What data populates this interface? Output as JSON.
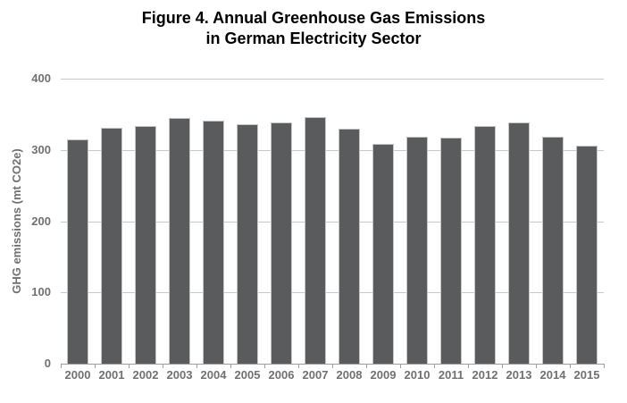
{
  "chart_data": {
    "type": "bar",
    "title": "Figure 4. Annual Greenhouse Gas Emissions in German Electricity Sector",
    "title_lines": [
      "Figure 4. Annual Greenhouse Gas Emissions",
      "in German Electricity Sector"
    ],
    "ylabel": "GHG emissions (mt CO2e)",
    "xlabel": "",
    "categories": [
      "2000",
      "2001",
      "2002",
      "2003",
      "2004",
      "2005",
      "2006",
      "2007",
      "2008",
      "2009",
      "2010",
      "2011",
      "2012",
      "2013",
      "2014",
      "2015"
    ],
    "values": [
      315,
      331,
      333,
      345,
      341,
      336,
      338,
      346,
      330,
      308,
      319,
      317,
      334,
      338,
      319,
      306
    ],
    "ylim": [
      0,
      400
    ],
    "yticks": [
      0,
      100,
      200,
      300,
      400
    ],
    "grid": "horizontal",
    "legend": "none",
    "colors": {
      "background": "#ffffff",
      "title": "#000000",
      "bar": "#595b5d",
      "bar_border": "#c6c6c6",
      "gridline": "#c9c9c9",
      "axis": "#9e9e9e",
      "tick_label": "#707070",
      "axis_title": "#707070"
    }
  }
}
